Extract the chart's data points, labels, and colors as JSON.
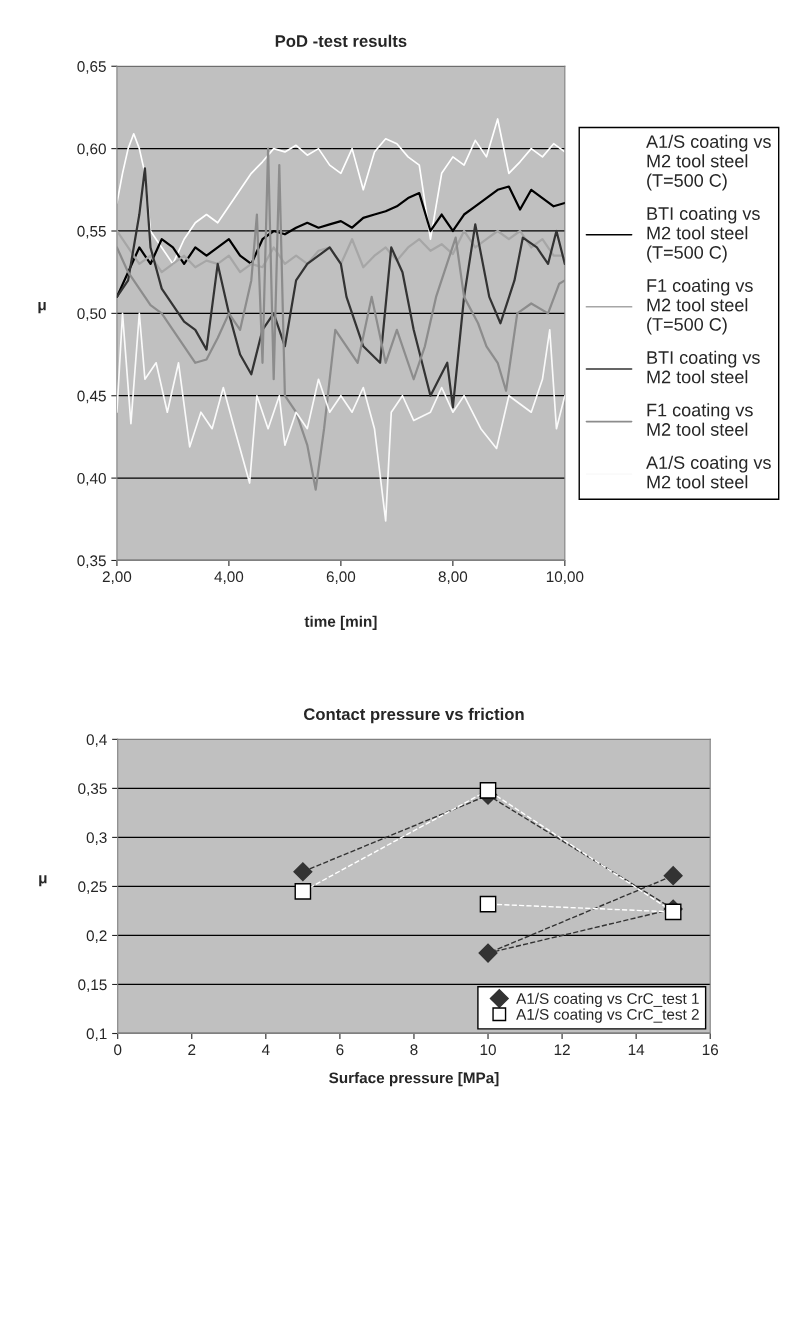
{
  "chart_data": [
    {
      "type": "line",
      "title": "PoD -test results",
      "xlabel": "time [min]",
      "ylabel": "μ",
      "xlim": [
        2,
        10
      ],
      "xticks": [
        {
          "value": 2,
          "label": "2,00"
        },
        {
          "value": 4,
          "label": "4,00"
        },
        {
          "value": 6,
          "label": "6,00"
        },
        {
          "value": 8,
          "label": "8,00"
        },
        {
          "value": 10,
          "label": "10,00"
        }
      ],
      "ylim": [
        0.35,
        0.65
      ],
      "yticks": [
        {
          "value": 0.35,
          "label": "0,35"
        },
        {
          "value": 0.4,
          "label": "0,40"
        },
        {
          "value": 0.45,
          "label": "0,45"
        },
        {
          "value": 0.5,
          "label": "0,50"
        },
        {
          "value": 0.55,
          "label": "0,55"
        },
        {
          "value": 0.6,
          "label": "0,60"
        },
        {
          "value": 0.65,
          "label": "0,65"
        }
      ],
      "grid": "y",
      "legend": "right",
      "marker": "none",
      "line_style": "solid",
      "series": [
        {
          "name": "A1/S coating vs\nM2 tool steel\n(T=500 C)",
          "color": "#ffffff",
          "x": [
            2.0,
            2.1,
            2.2,
            2.3,
            2.4,
            2.5,
            2.6,
            2.8,
            3.0,
            3.2,
            3.4,
            3.6,
            3.8,
            4.0,
            4.2,
            4.4,
            4.6,
            4.8,
            5.0,
            5.2,
            5.4,
            5.6,
            5.8,
            6.0,
            6.2,
            6.4,
            6.6,
            6.8,
            7.0,
            7.2,
            7.4,
            7.6,
            7.8,
            8.0,
            8.2,
            8.4,
            8.6,
            8.8,
            9.0,
            9.2,
            9.4,
            9.6,
            9.8,
            10.0
          ],
          "values": [
            0.567,
            0.585,
            0.6,
            0.609,
            0.6,
            0.585,
            0.55,
            0.54,
            0.53,
            0.545,
            0.555,
            0.56,
            0.555,
            0.565,
            0.575,
            0.585,
            0.592,
            0.6,
            0.598,
            0.602,
            0.596,
            0.6,
            0.59,
            0.585,
            0.6,
            0.575,
            0.598,
            0.606,
            0.603,
            0.595,
            0.59,
            0.545,
            0.585,
            0.595,
            0.59,
            0.605,
            0.595,
            0.618,
            0.585,
            0.592,
            0.6,
            0.595,
            0.603,
            0.598
          ]
        },
        {
          "name": "BTI coating vs\nM2 tool steel\n(T=500 C)",
          "color": "#000000",
          "x": [
            2.0,
            2.2,
            2.4,
            2.6,
            2.8,
            3.0,
            3.2,
            3.4,
            3.6,
            3.8,
            4.0,
            4.2,
            4.4,
            4.6,
            4.8,
            5.0,
            5.2,
            5.4,
            5.6,
            5.8,
            6.0,
            6.2,
            6.4,
            6.6,
            6.8,
            7.0,
            7.2,
            7.4,
            7.6,
            7.8,
            8.0,
            8.2,
            8.4,
            8.6,
            8.8,
            9.0,
            9.2,
            9.4,
            9.6,
            9.8,
            10.0
          ],
          "values": [
            0.51,
            0.525,
            0.54,
            0.53,
            0.545,
            0.54,
            0.53,
            0.54,
            0.535,
            0.54,
            0.545,
            0.535,
            0.53,
            0.545,
            0.55,
            0.548,
            0.552,
            0.555,
            0.552,
            0.554,
            0.556,
            0.552,
            0.558,
            0.56,
            0.562,
            0.565,
            0.57,
            0.573,
            0.55,
            0.56,
            0.55,
            0.56,
            0.565,
            0.57,
            0.575,
            0.577,
            0.563,
            0.575,
            0.57,
            0.565,
            0.567
          ]
        },
        {
          "name": "F1 coating vs\nM2 tool steel\n(T=500 C)",
          "color": "#a6a6a6",
          "x": [
            2.0,
            2.2,
            2.4,
            2.6,
            2.8,
            3.0,
            3.2,
            3.4,
            3.6,
            3.8,
            4.0,
            4.2,
            4.4,
            4.6,
            4.8,
            5.0,
            5.2,
            5.4,
            5.6,
            5.8,
            6.0,
            6.2,
            6.4,
            6.6,
            6.8,
            7.0,
            7.2,
            7.4,
            7.6,
            7.8,
            8.0,
            8.2,
            8.4,
            8.6,
            8.8,
            9.0,
            9.2,
            9.4,
            9.6,
            9.8,
            10.0
          ],
          "values": [
            0.55,
            0.54,
            0.53,
            0.535,
            0.525,
            0.53,
            0.535,
            0.528,
            0.532,
            0.53,
            0.535,
            0.525,
            0.53,
            0.528,
            0.54,
            0.53,
            0.535,
            0.53,
            0.538,
            0.54,
            0.53,
            0.545,
            0.528,
            0.535,
            0.54,
            0.532,
            0.54,
            0.545,
            0.538,
            0.542,
            0.536,
            0.55,
            0.54,
            0.545,
            0.55,
            0.545,
            0.55,
            0.54,
            0.545,
            0.535,
            0.535
          ]
        },
        {
          "name": "BTI coating vs\nM2 tool steel",
          "color": "#333333",
          "x": [
            2.0,
            2.2,
            2.4,
            2.5,
            2.6,
            2.8,
            3.0,
            3.2,
            3.4,
            3.6,
            3.8,
            4.0,
            4.2,
            4.4,
            4.6,
            4.8,
            5.0,
            5.2,
            5.4,
            5.6,
            5.8,
            6.0,
            6.1,
            6.4,
            6.7,
            6.9,
            7.1,
            7.3,
            7.6,
            7.9,
            8.0,
            8.2,
            8.4,
            8.65,
            8.85,
            9.1,
            9.25,
            9.5,
            9.7,
            9.85,
            10.0
          ],
          "values": [
            0.51,
            0.52,
            0.56,
            0.588,
            0.54,
            0.515,
            0.505,
            0.495,
            0.49,
            0.478,
            0.53,
            0.5,
            0.475,
            0.463,
            0.49,
            0.5,
            0.48,
            0.52,
            0.53,
            0.535,
            0.54,
            0.53,
            0.51,
            0.48,
            0.47,
            0.54,
            0.525,
            0.49,
            0.45,
            0.47,
            0.443,
            0.51,
            0.554,
            0.51,
            0.494,
            0.52,
            0.546,
            0.54,
            0.53,
            0.55,
            0.53
          ]
        },
        {
          "name": "F1 coating vs\nM2 tool steel",
          "color": "#8c8c8c",
          "x": [
            2.0,
            2.2,
            2.4,
            2.6,
            2.8,
            3.0,
            3.2,
            3.4,
            3.6,
            3.8,
            4.0,
            4.2,
            4.4,
            4.5,
            4.6,
            4.7,
            4.8,
            4.9,
            5.0,
            5.2,
            5.4,
            5.55,
            5.7,
            5.9,
            6.1,
            6.3,
            6.55,
            6.8,
            7.0,
            7.3,
            7.5,
            7.7,
            8.05,
            8.2,
            8.45,
            8.6,
            8.8,
            8.95,
            9.15,
            9.4,
            9.7,
            9.9,
            10.0
          ],
          "values": [
            0.54,
            0.525,
            0.515,
            0.505,
            0.5,
            0.49,
            0.48,
            0.47,
            0.472,
            0.485,
            0.5,
            0.49,
            0.52,
            0.56,
            0.47,
            0.6,
            0.46,
            0.59,
            0.45,
            0.44,
            0.42,
            0.393,
            0.43,
            0.49,
            0.48,
            0.47,
            0.51,
            0.47,
            0.49,
            0.46,
            0.48,
            0.51,
            0.546,
            0.51,
            0.494,
            0.48,
            0.47,
            0.453,
            0.5,
            0.506,
            0.5,
            0.518,
            0.52
          ]
        },
        {
          "name": "A1/S coating vs\nM2 tool steel",
          "color": "#fafafa",
          "x": [
            2.0,
            2.1,
            2.25,
            2.4,
            2.5,
            2.7,
            2.9,
            3.1,
            3.3,
            3.5,
            3.7,
            3.9,
            4.1,
            4.37,
            4.5,
            4.7,
            4.9,
            5.0,
            5.2,
            5.4,
            5.6,
            5.8,
            6.0,
            6.2,
            6.4,
            6.6,
            6.8,
            6.9,
            7.1,
            7.3,
            7.6,
            7.8,
            8.0,
            8.2,
            8.5,
            8.78,
            9.0,
            9.2,
            9.4,
            9.6,
            9.73,
            9.85,
            10.0
          ],
          "values": [
            0.44,
            0.5,
            0.433,
            0.5,
            0.46,
            0.47,
            0.44,
            0.47,
            0.419,
            0.44,
            0.43,
            0.455,
            0.43,
            0.397,
            0.45,
            0.43,
            0.45,
            0.42,
            0.44,
            0.43,
            0.46,
            0.44,
            0.45,
            0.44,
            0.455,
            0.43,
            0.374,
            0.44,
            0.45,
            0.435,
            0.44,
            0.455,
            0.44,
            0.45,
            0.43,
            0.418,
            0.45,
            0.445,
            0.44,
            0.46,
            0.49,
            0.43,
            0.45
          ]
        }
      ]
    },
    {
      "type": "line",
      "title": "Contact pressure vs friction",
      "xlabel": "Surface pressure [MPa]",
      "ylabel": "μ",
      "xlim": [
        0,
        16
      ],
      "xticks": [
        0,
        2,
        4,
        6,
        8,
        10,
        12,
        14,
        16
      ],
      "ylim": [
        0.1,
        0.4
      ],
      "yticks": [
        {
          "value": 0.1,
          "label": "0,1"
        },
        {
          "value": 0.15,
          "label": "0,15"
        },
        {
          "value": 0.2,
          "label": "0,2"
        },
        {
          "value": 0.25,
          "label": "0,25"
        },
        {
          "value": 0.3,
          "label": "0,3"
        },
        {
          "value": 0.35,
          "label": "0,35"
        },
        {
          "value": 0.4,
          "label": "0,4"
        }
      ],
      "grid": "y",
      "legend": "bottom right",
      "line_style": "dashed",
      "series": [
        {
          "name": "A1/S coating vs CrC_test 1",
          "color": "#333333",
          "marker": "diamond",
          "x": [
            5,
            10,
            15,
            10,
            15
          ],
          "values": [
            0.265,
            0.343,
            0.227,
            0.182,
            0.261
          ]
        },
        {
          "name": "A1/S coating vs CrC_test 2",
          "color": "#ffffff",
          "marker": "square",
          "x": [
            5,
            10,
            15,
            10
          ],
          "values": [
            0.245,
            0.348,
            0.224,
            0.232
          ]
        }
      ]
    }
  ]
}
